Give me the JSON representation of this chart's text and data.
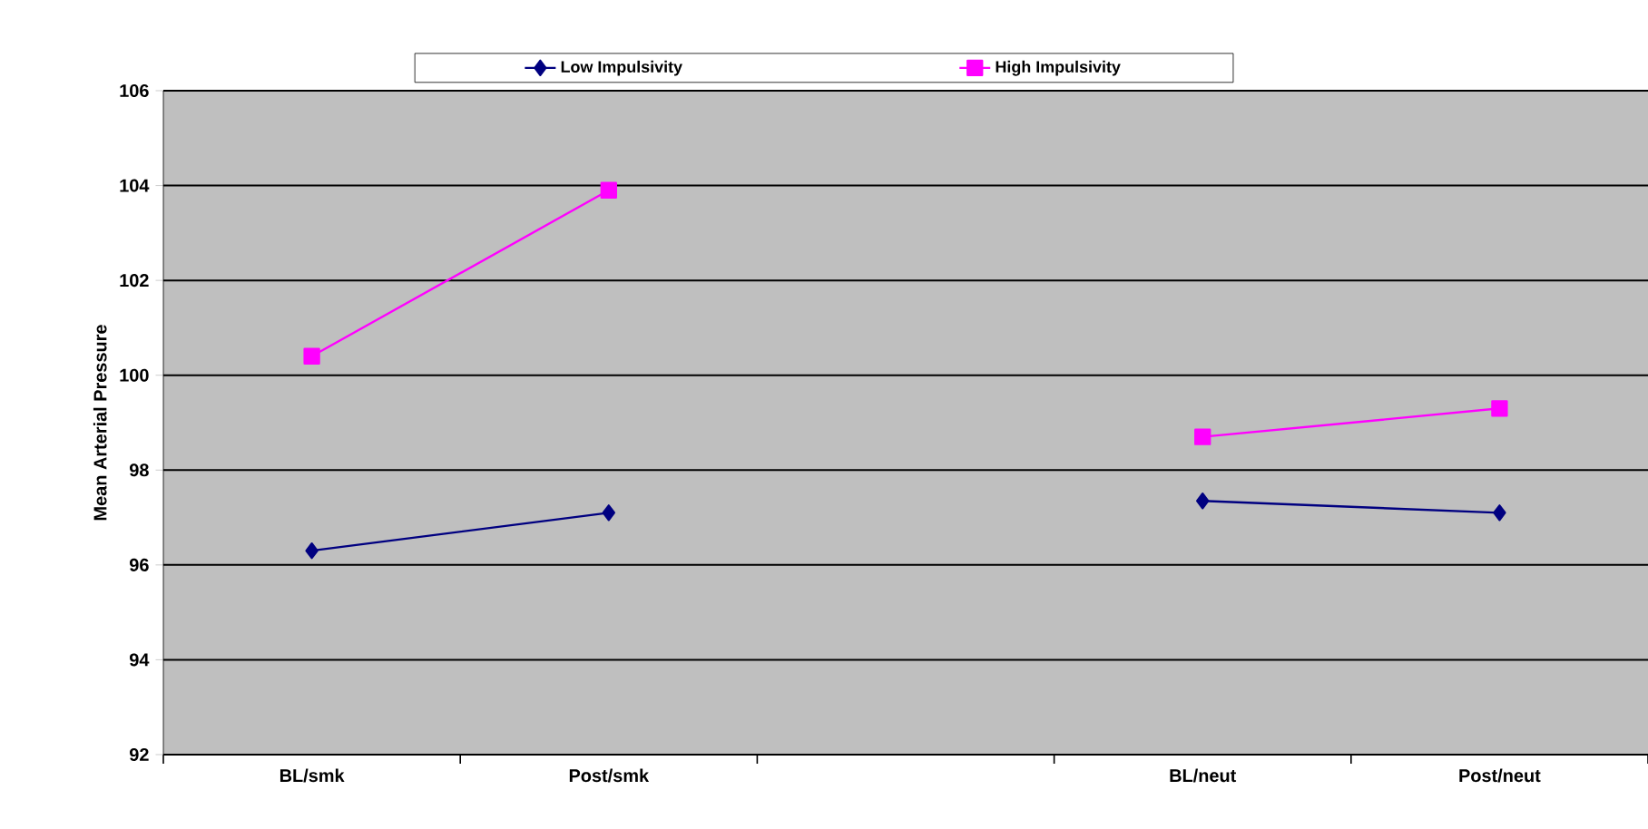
{
  "chart_data": {
    "type": "line",
    "ylabel": "Mean Arterial Pressure",
    "categories": [
      "BL/smk",
      "Post/smk",
      null,
      "BL/neut",
      "Post/neut"
    ],
    "series": [
      {
        "name": "Low Impulsivity",
        "color": "#000080",
        "marker": "diamond",
        "values": [
          96.3,
          97.1,
          null,
          97.35,
          97.1
        ]
      },
      {
        "name": "High Impulsivity",
        "color": "#ff00ff",
        "marker": "square",
        "values": [
          100.4,
          103.9,
          null,
          98.7,
          99.3
        ]
      }
    ],
    "ylim": [
      92,
      106
    ],
    "yticks": [
      92,
      94,
      96,
      98,
      100,
      102,
      104,
      106
    ],
    "grid": "y",
    "legend": "top",
    "line_style": "solid"
  }
}
